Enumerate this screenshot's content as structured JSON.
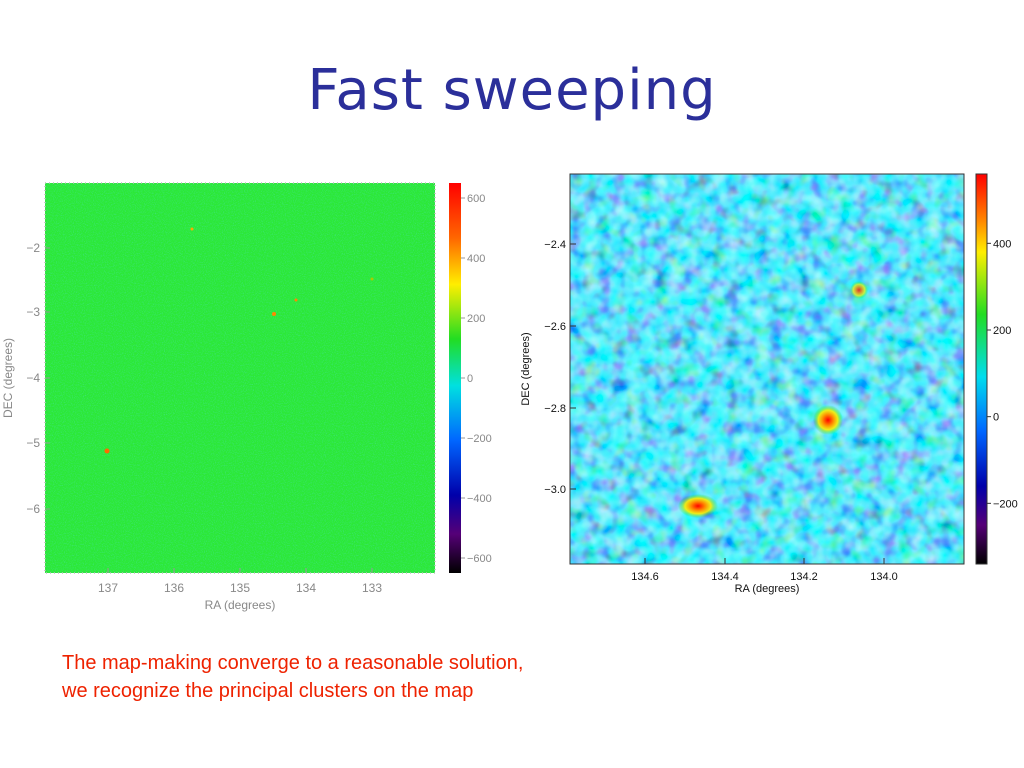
{
  "slide": {
    "title": "Fast sweeping",
    "caption_lines": [
      "The map-making converge to a reasonable solution,",
      "we recognize the principal clusters on the map"
    ]
  },
  "maps": [
    {
      "xlabel": "RA (degrees)",
      "ylabel": "DEC (degrees)",
      "xticks": [
        "137",
        "136",
        "135",
        "134",
        "133"
      ],
      "yticks": [
        "−2",
        "−3",
        "−4",
        "−5",
        "−6"
      ],
      "colorbar_ticks": [
        "600",
        "400",
        "200",
        "0",
        "−200",
        "−400",
        "−600"
      ],
      "colorbar_range": [
        -650,
        650
      ]
    },
    {
      "xlabel": "RA (degrees)",
      "ylabel": "DEC (degrees)",
      "xticks": [
        "134.6",
        "134.4",
        "134.2",
        "134.0"
      ],
      "yticks": [
        "−2.4",
        "−2.6",
        "−2.8",
        "−3.0"
      ],
      "colorbar_ticks": [
        "400",
        "200",
        "0",
        "−200"
      ],
      "colorbar_range": [
        -340,
        560
      ]
    }
  ]
}
